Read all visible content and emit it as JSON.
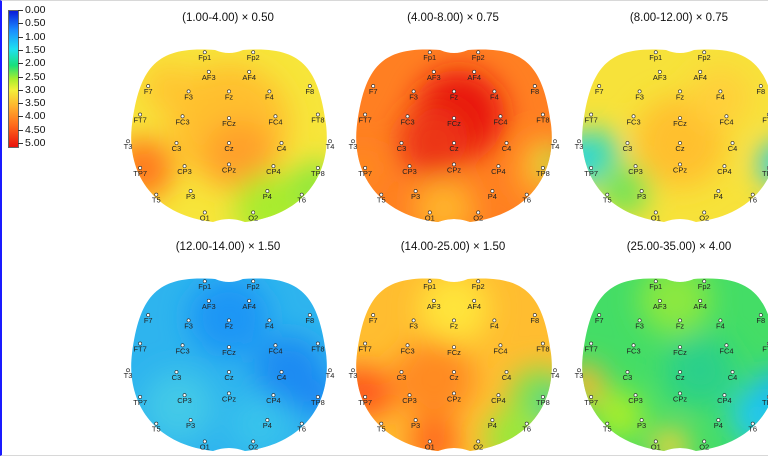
{
  "colorbar": {
    "labels": [
      "0.00",
      "0.50",
      "1.00",
      "1.50",
      "2.00",
      "2.50",
      "3.00",
      "3.50",
      "4.00",
      "4.50",
      "5.00"
    ],
    "stops": [
      "#0b1bd9",
      "#1a8cff",
      "#1fe0f0",
      "#19e07a",
      "#a8ee2c",
      "#f3f03a",
      "#ffb32e",
      "#ff6a1c",
      "#e8120c"
    ]
  },
  "electrode_labels": [
    "Fp1",
    "Fp2",
    "AF3",
    "AF4",
    "F7",
    "F3",
    "Fz",
    "F4",
    "F8",
    "FT7",
    "FC3",
    "FCz",
    "FC4",
    "FT8",
    "T3",
    "C3",
    "Cz",
    "C4",
    "T4",
    "TP7",
    "CP3",
    "CPz",
    "CP4",
    "TP8",
    "T5",
    "P3",
    "P4",
    "T6",
    "O1",
    "O2"
  ],
  "panels": [
    {
      "title": "(1.00-4.00) × 0.50",
      "base": "#f7e53a",
      "blobs": [
        [
          "#ffbf2e",
          0,
          -0.1,
          0.6
        ],
        [
          "#ffa02a",
          0.1,
          0.25,
          0.35
        ],
        [
          "#e8180e",
          -0.95,
          0.45,
          0.22
        ],
        [
          "#ff7a1e",
          -0.85,
          0.4,
          0.3
        ],
        [
          "#a9ec2e",
          0.4,
          0.85,
          0.35
        ],
        [
          "#8ee83a",
          0.85,
          0.6,
          0.25
        ],
        [
          "#ffc630",
          -0.6,
          -0.5,
          0.25
        ]
      ]
    },
    {
      "title": "(4.00-8.00) × 0.75",
      "base": "#ff7f22",
      "blobs": [
        [
          "#e8120c",
          0.05,
          -0.2,
          0.45
        ],
        [
          "#ec3414",
          -0.2,
          0.1,
          0.35
        ],
        [
          "#ff9d28",
          0.85,
          0.5,
          0.25
        ],
        [
          "#ffc82f",
          0.9,
          0.3,
          0.2
        ],
        [
          "#ffb22b",
          -0.1,
          0.85,
          0.3
        ],
        [
          "#6fe04a",
          1.0,
          0.35,
          0.12
        ],
        [
          "#ff8a24",
          -0.9,
          0.4,
          0.2
        ]
      ]
    },
    {
      "title": "(8.00-12.00) × 0.75",
      "base": "#f7e23a",
      "blobs": [
        [
          "#ffc02e",
          0,
          0.1,
          0.45
        ],
        [
          "#21d4ea",
          -1.0,
          0.3,
          0.25
        ],
        [
          "#2fd9c4",
          -0.8,
          0.2,
          0.2
        ],
        [
          "#22ccee",
          1.0,
          0.35,
          0.22
        ],
        [
          "#73e355",
          -0.55,
          0.65,
          0.25
        ],
        [
          "#ffd03a",
          0.4,
          -0.4,
          0.3
        ]
      ]
    },
    {
      "title": "(12.00-14.00) × 1.50",
      "base": "#2eb4ee",
      "blobs": [
        [
          "#1a96f5",
          0,
          -0.5,
          0.4
        ],
        [
          "#1f8bf2",
          0.6,
          0.1,
          0.35
        ],
        [
          "#43c9e8",
          -0.5,
          0.5,
          0.35
        ],
        [
          "#39c3ec",
          0.3,
          0.7,
          0.3
        ],
        [
          "#1a86f3",
          0.9,
          0.4,
          0.2
        ]
      ]
    },
    {
      "title": "(14.00-25.00) × 1.50",
      "base": "#ffbd30",
      "blobs": [
        [
          "#ffe43a",
          0,
          -0.6,
          0.35
        ],
        [
          "#ff8a24",
          -0.2,
          0.2,
          0.4
        ],
        [
          "#ec2a12",
          -1.0,
          0.3,
          0.2
        ],
        [
          "#ff5a1a",
          -0.85,
          0.35,
          0.25
        ],
        [
          "#7de34e",
          0.85,
          0.4,
          0.3
        ],
        [
          "#38cf9a",
          1.0,
          0.5,
          0.18
        ],
        [
          "#ff6a1c",
          -0.2,
          0.9,
          0.25
        ],
        [
          "#9ae83a",
          0.6,
          0.85,
          0.3
        ]
      ]
    },
    {
      "title": "(25.00-35.00) × 4.00",
      "base": "#44dd66",
      "blobs": [
        [
          "#8be840",
          -0.05,
          -0.7,
          0.35
        ],
        [
          "#2ad08a",
          0.2,
          0.1,
          0.35
        ],
        [
          "#22c8ec",
          0.8,
          0.6,
          0.3
        ],
        [
          "#1fb9f2",
          0.95,
          0.3,
          0.2
        ],
        [
          "#ffb52e",
          -0.95,
          0.25,
          0.2
        ],
        [
          "#ffd238",
          -0.1,
          0.95,
          0.18
        ],
        [
          "#a8ee2c",
          -0.6,
          0.6,
          0.25
        ]
      ]
    }
  ]
}
